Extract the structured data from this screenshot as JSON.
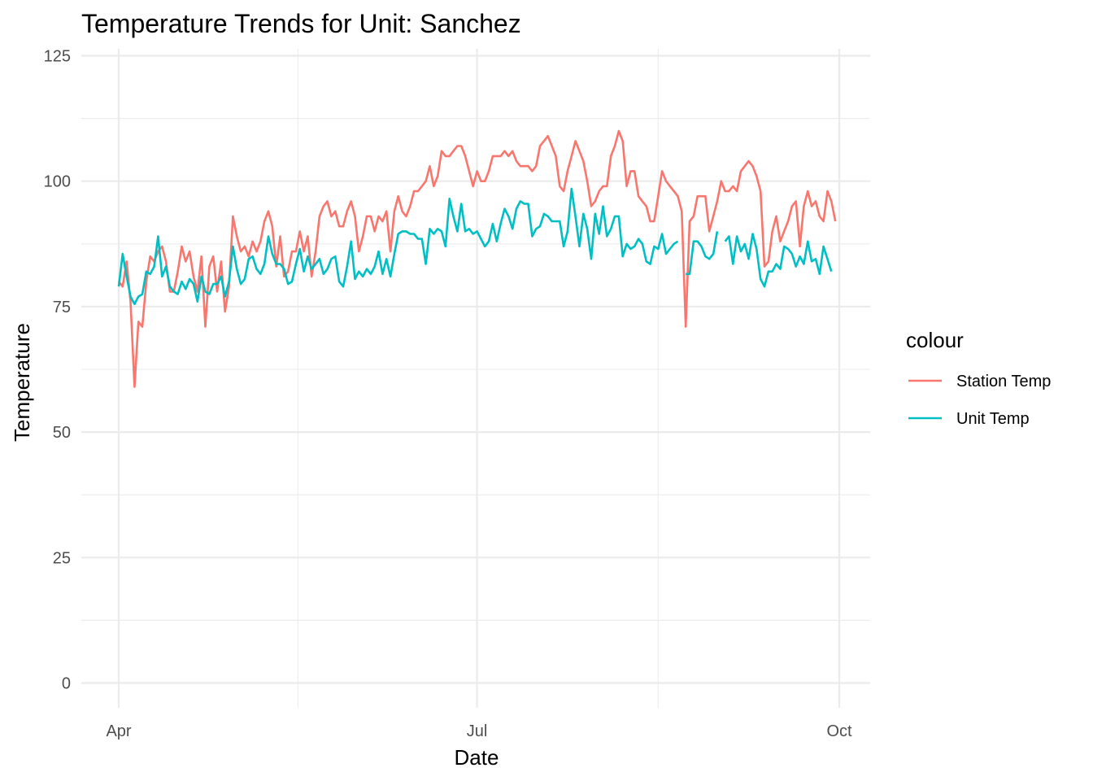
{
  "chart_data": {
    "type": "line",
    "title": "Temperature Trends for Unit: Sanchez",
    "xlabel": "Date",
    "ylabel": "Temperature",
    "x_start": "2024-04-01",
    "x_ticks": [
      {
        "label": "Apr",
        "date": "2024-04-01"
      },
      {
        "label": "Jul",
        "date": "2024-07-01"
      },
      {
        "label": "Oct",
        "date": "2024-10-01"
      }
    ],
    "xlim": [
      "2023-03-27",
      "2024-10-05"
    ],
    "y_ticks": [
      0,
      25,
      50,
      75,
      100,
      125
    ],
    "ylim": [
      -5,
      127
    ],
    "grid": true,
    "legend": {
      "title": "colour",
      "position": "right"
    },
    "series": [
      {
        "name": "Station Temp",
        "color": "#F8766D",
        "values": [
          80,
          79,
          84,
          76,
          59,
          72,
          71,
          80,
          85,
          84,
          86,
          87,
          84,
          78,
          78,
          82,
          87,
          84,
          86,
          81,
          78,
          85,
          71,
          83,
          85,
          78,
          84,
          74,
          79,
          93,
          89,
          86,
          87,
          85,
          88,
          86,
          88,
          92,
          94,
          91,
          83,
          89,
          81,
          82,
          86,
          86,
          90,
          86,
          89,
          81,
          86,
          93,
          95,
          96,
          93,
          94,
          91,
          91,
          94,
          96,
          93,
          86,
          89,
          93,
          93,
          90,
          93,
          92,
          94,
          86,
          94,
          97,
          94,
          93,
          95,
          98,
          98,
          99,
          100,
          103,
          99,
          101,
          106,
          105,
          105,
          106,
          107,
          107,
          105,
          102,
          99,
          102,
          100,
          100,
          102,
          105,
          105,
          105,
          106,
          105,
          106,
          104,
          103,
          103,
          103,
          102,
          103,
          107,
          108,
          109,
          107,
          105,
          99,
          98,
          102,
          105,
          108,
          106,
          104,
          100,
          95,
          96,
          98,
          99,
          99,
          105,
          107,
          110,
          108,
          99,
          102,
          102,
          97,
          96,
          95,
          92,
          92,
          97,
          102,
          100,
          99,
          98,
          97,
          94,
          71,
          92,
          93,
          97,
          97,
          97,
          90,
          93,
          96,
          100,
          98,
          98,
          99,
          98,
          102,
          103,
          104,
          103,
          101,
          98,
          83,
          84,
          90,
          93,
          88,
          90,
          92,
          95,
          96,
          87,
          95,
          98,
          95,
          96,
          93,
          92,
          98,
          96,
          92
        ],
        "x_offset_days": 0
      },
      {
        "name": "Unit Temp",
        "color": "#00BFC4",
        "values": [
          79,
          85.5,
          81,
          77,
          75.5,
          77,
          77.5,
          82,
          81.5,
          83,
          89,
          81,
          83,
          79,
          78,
          77.5,
          80,
          78.5,
          80.5,
          79.5,
          76,
          81,
          78,
          77.5,
          79.5,
          79.5,
          81,
          77,
          80,
          87,
          82.5,
          79.5,
          80.5,
          84.5,
          85,
          82.5,
          81.5,
          83.5,
          89,
          85.5,
          83.5,
          83.5,
          82.5,
          79.5,
          80,
          83.5,
          86.5,
          82,
          85,
          82.5,
          83.5,
          84.5,
          81.5,
          82.5,
          84.5,
          85,
          80,
          79,
          83,
          88,
          80.5,
          82,
          81,
          82.5,
          81.5,
          83,
          86,
          81.5,
          84.5,
          81,
          85.5,
          89.5,
          90,
          90,
          89.5,
          89.5,
          88.5,
          88.5,
          83.5,
          90.5,
          89.5,
          90.5,
          90,
          87,
          96.5,
          93,
          90,
          95.5,
          90,
          90.5,
          89.5,
          90,
          88.5,
          87,
          88,
          91.5,
          88,
          91.5,
          94.5,
          93,
          90.5,
          94.5,
          96,
          95.5,
          95.5,
          89,
          90.5,
          91,
          93.5,
          93,
          92,
          92,
          92,
          87,
          90,
          98.5,
          93,
          87,
          93.5,
          90.5,
          84.5,
          93.5,
          89.5,
          95,
          89,
          90.5,
          93,
          93,
          85,
          87.5,
          86.5,
          87,
          88.5,
          87.5,
          84,
          83.5,
          87,
          86.5,
          89.5,
          85.5,
          86.5,
          87.5,
          88,
          null,
          81.5,
          81.5,
          88,
          88,
          87,
          85,
          84.5,
          85.5,
          90,
          null,
          88,
          89,
          83.5,
          89,
          86,
          87.5,
          84.5,
          89.5,
          86.5,
          80.5,
          79,
          82,
          82,
          83.5,
          82.5,
          87,
          86.5,
          85.5,
          83,
          85,
          83.5,
          88,
          84,
          84.5,
          81.5,
          87,
          84.5,
          82
        ],
        "x_offset_days": 0
      }
    ]
  }
}
